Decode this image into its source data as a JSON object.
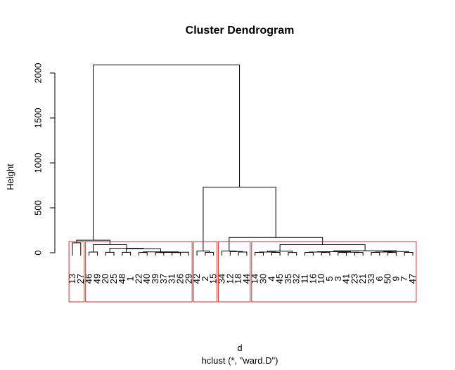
{
  "chart_data": {
    "type": "dendrogram",
    "title": "Cluster Dendrogram",
    "xlabel": "d",
    "sublabel": "hclust (*, \"ward.D\")",
    "ylabel": "Height",
    "ylim": [
      0,
      2100
    ],
    "y_ticks": [
      0,
      500,
      1000,
      1500,
      2000
    ],
    "highlight_color": "#cc3333",
    "leaves": [
      "13",
      "27",
      "46",
      "49",
      "20",
      "25",
      "48",
      "1",
      "22",
      "40",
      "39",
      "37",
      "31",
      "26",
      "29",
      "42",
      "2",
      "15",
      "34",
      "12",
      "18",
      "44",
      "14",
      "30",
      "4",
      "45",
      "35",
      "32",
      "11",
      "16",
      "10",
      "5",
      "3",
      "41",
      "23",
      "21",
      "33",
      "6",
      "50",
      "9",
      "7",
      "47"
    ],
    "rect_groups": [
      [
        0,
        1
      ],
      [
        2,
        14
      ],
      [
        15,
        17
      ],
      [
        18,
        21
      ],
      [
        22,
        41
      ]
    ],
    "nodes": [
      {
        "left": [
          "leaf",
          0
        ],
        "right": [
          "leaf",
          1
        ],
        "height": 110
      },
      {
        "left": [
          "leaf",
          2
        ],
        "right": [
          "leaf",
          3
        ],
        "height": 8
      },
      {
        "left": [
          "leaf",
          4
        ],
        "right": [
          "leaf",
          5
        ],
        "height": 5
      },
      {
        "left": [
          "leaf",
          6
        ],
        "right": [
          "leaf",
          7
        ],
        "height": 5
      },
      {
        "left": [
          "leaf",
          8
        ],
        "right": [
          "leaf",
          9
        ],
        "height": 3
      },
      {
        "left": [
          "leaf",
          10
        ],
        "right": [
          "leaf",
          11
        ],
        "height": 2
      },
      {
        "left": [
          "leaf",
          12
        ],
        "right": [
          "leaf",
          13
        ],
        "height": 2
      },
      {
        "left": [
          "node",
          5
        ],
        "right": [
          "node",
          6
        ],
        "height": 4
      },
      {
        "left": [
          "leaf",
          14
        ],
        "right": [
          "node",
          7
        ],
        "height": 6
      },
      {
        "left": [
          "node",
          4
        ],
        "right": [
          "node",
          8
        ],
        "height": 10
      },
      {
        "left": [
          "node",
          3
        ],
        "right": [
          "node",
          9
        ],
        "height": 45
      },
      {
        "left": [
          "node",
          2
        ],
        "right": [
          "node",
          10
        ],
        "height": 50
      },
      {
        "left": [
          "node",
          1
        ],
        "right": [
          "node",
          11
        ],
        "height": 90
      },
      {
        "left": [
          "leaf",
          16
        ],
        "right": [
          "leaf",
          17
        ],
        "height": 5
      },
      {
        "left": [
          "leaf",
          15
        ],
        "right": [
          "node",
          13
        ],
        "height": 20
      },
      {
        "left": [
          "leaf",
          20
        ],
        "right": [
          "leaf",
          21
        ],
        "height": 8
      },
      {
        "left": [
          "leaf",
          19
        ],
        "right": [
          "node",
          15
        ],
        "height": 14
      },
      {
        "left": [
          "leaf",
          18
        ],
        "right": [
          "node",
          16
        ],
        "height": 20
      },
      {
        "left": [
          "leaf",
          22
        ],
        "right": [
          "leaf",
          23
        ],
        "height": 4
      },
      {
        "left": [
          "leaf",
          24
        ],
        "right": [
          "leaf",
          25
        ],
        "height": 4
      },
      {
        "left": [
          "node",
          18
        ],
        "right": [
          "node",
          19
        ],
        "height": 8
      },
      {
        "left": [
          "leaf",
          26
        ],
        "right": [
          "leaf",
          27
        ],
        "height": 3
      },
      {
        "left": [
          "node",
          20
        ],
        "right": [
          "node",
          21
        ],
        "height": 18
      },
      {
        "left": [
          "leaf",
          28
        ],
        "right": [
          "leaf",
          29
        ],
        "height": 4
      },
      {
        "left": [
          "leaf",
          30
        ],
        "right": [
          "leaf",
          31
        ],
        "height": 3
      },
      {
        "left": [
          "node",
          23
        ],
        "right": [
          "node",
          24
        ],
        "height": 8
      },
      {
        "left": [
          "leaf",
          32
        ],
        "right": [
          "leaf",
          33
        ],
        "height": 3
      },
      {
        "left": [
          "leaf",
          34
        ],
        "right": [
          "leaf",
          35
        ],
        "height": 3
      },
      {
        "left": [
          "node",
          26
        ],
        "right": [
          "node",
          27
        ],
        "height": 6
      },
      {
        "left": [
          "node",
          25
        ],
        "right": [
          "node",
          28
        ],
        "height": 12
      },
      {
        "left": [
          "leaf",
          36
        ],
        "right": [
          "leaf",
          37
        ],
        "height": 4
      },
      {
        "left": [
          "leaf",
          38
        ],
        "right": [
          "leaf",
          39
        ],
        "height": 3
      },
      {
        "left": [
          "node",
          30
        ],
        "right": [
          "node",
          31
        ],
        "height": 8
      },
      {
        "left": [
          "leaf",
          40
        ],
        "right": [
          "leaf",
          41
        ],
        "height": 4
      },
      {
        "left": [
          "node",
          32
        ],
        "right": [
          "node",
          33
        ],
        "height": 14
      },
      {
        "left": [
          "node",
          29
        ],
        "right": [
          "node",
          34
        ],
        "height": 22
      },
      {
        "left": [
          "node",
          22
        ],
        "right": [
          "node",
          35
        ],
        "height": 90
      },
      {
        "left": [
          "node",
          17
        ],
        "right": [
          "node",
          36
        ],
        "height": 170
      },
      {
        "left": [
          "node",
          14
        ],
        "right": [
          "node",
          37
        ],
        "height": 730
      },
      {
        "left": [
          "node",
          0
        ],
        "right": [
          "node",
          12
        ],
        "height": 140
      },
      {
        "left": [
          "node",
          39
        ],
        "right": [
          "node",
          38
        ],
        "height": 2090
      }
    ]
  }
}
